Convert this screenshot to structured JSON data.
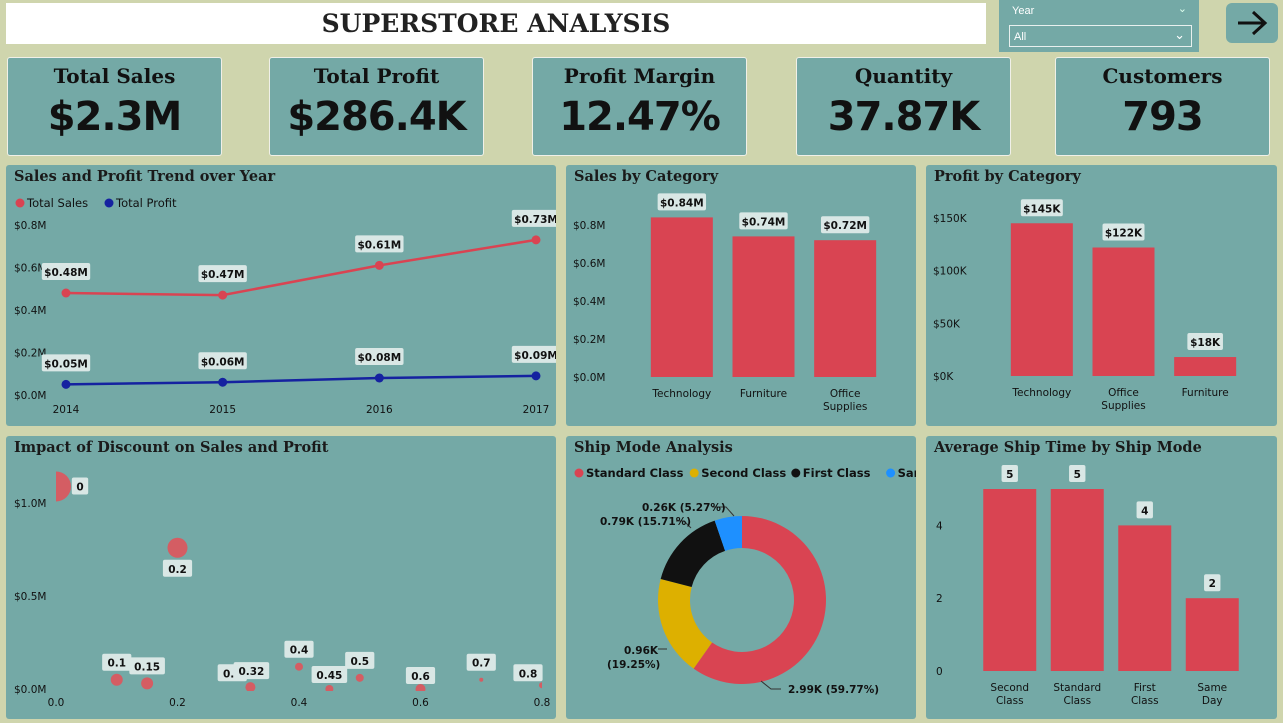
{
  "header": {
    "title": "SUPERSTORE ANALYSIS"
  },
  "slicer": {
    "label": "Year",
    "value": "All"
  },
  "nav": {
    "icon": "arrow-right-icon"
  },
  "kpis": [
    {
      "label": "Total Sales",
      "value": "$2.3M"
    },
    {
      "label": "Total Profit",
      "value": "$286.4K"
    },
    {
      "label": "Profit Margin",
      "value": "12.47%"
    },
    {
      "label": "Quantity",
      "value": "37.87K"
    },
    {
      "label": "Customers",
      "value": "793"
    }
  ],
  "colors": {
    "sales": "#d94452",
    "profit": "#1522a0",
    "panel": "#74a9a6",
    "background": "#cfd5ad"
  },
  "chart_data": [
    {
      "type": "line",
      "title": "Sales and Profit Trend over Year",
      "x": [
        "2014",
        "2015",
        "2016",
        "2017"
      ],
      "series": [
        {
          "name": "Total Sales",
          "values": [
            0.48,
            0.47,
            0.61,
            0.73
          ],
          "labels": [
            "$0.48M",
            "$0.47M",
            "$0.61M",
            "$0.73M"
          ],
          "color": "#d94452"
        },
        {
          "name": "Total Profit",
          "values": [
            0.05,
            0.06,
            0.08,
            0.09
          ],
          "labels": [
            "$0.05M",
            "$0.06M",
            "$0.08M",
            "$0.09M"
          ],
          "color": "#1522a0"
        }
      ],
      "ylim": [
        0,
        0.8
      ],
      "yticks": [
        "$0.0M",
        "$0.2M",
        "$0.4M",
        "$0.6M",
        "$0.8M"
      ],
      "legend": "top-left"
    },
    {
      "type": "bar",
      "title": "Sales by Category",
      "categories": [
        "Technology",
        "Furniture",
        "Office Supplies"
      ],
      "values": [
        0.84,
        0.74,
        0.72
      ],
      "labels": [
        "$0.84M",
        "$0.74M",
        "$0.72M"
      ],
      "ylim": [
        0,
        0.8
      ],
      "yticks": [
        "$0.0M",
        "$0.2M",
        "$0.4M",
        "$0.6M",
        "$0.8M"
      ]
    },
    {
      "type": "bar",
      "title": "Profit by Category",
      "categories": [
        "Technology",
        "Office Supplies",
        "Furniture"
      ],
      "values": [
        145,
        122,
        18
      ],
      "labels": [
        "$145K",
        "$122K",
        "$18K"
      ],
      "ylim": [
        0,
        150
      ],
      "yticks": [
        "$0K",
        "$50K",
        "$100K",
        "$150K"
      ]
    },
    {
      "type": "scatter",
      "title": "Impact of Discount on Sales and Profit",
      "points": [
        {
          "x": 0,
          "y": 1.09,
          "label": "0",
          "size": 15
        },
        {
          "x": 0.1,
          "y": 0.05,
          "label": "0.1",
          "size": 6
        },
        {
          "x": 0.15,
          "y": 0.03,
          "label": "0.15",
          "size": 6
        },
        {
          "x": 0.2,
          "y": 0.76,
          "label": "0.2",
          "size": 10
        },
        {
          "x": 0.3,
          "y": 0.09,
          "label": "0.3",
          "size": 3
        },
        {
          "x": 0.32,
          "y": 0.01,
          "label": "0.32",
          "size": 5
        },
        {
          "x": 0.4,
          "y": 0.12,
          "label": "0.4",
          "size": 4
        },
        {
          "x": 0.45,
          "y": 0.0,
          "label": "0.45",
          "size": 4
        },
        {
          "x": 0.5,
          "y": 0.06,
          "label": "0.5",
          "size": 4
        },
        {
          "x": 0.6,
          "y": 0.0,
          "label": "0.6",
          "size": 5
        },
        {
          "x": 0.7,
          "y": 0.05,
          "label": "0.7",
          "size": 2
        },
        {
          "x": 0.8,
          "y": 0.02,
          "label": "0.8",
          "size": 3
        }
      ],
      "xlim": [
        0,
        0.8
      ],
      "ylim": [
        0,
        1.2
      ],
      "xticks": [
        "0.0",
        "0.2",
        "0.4",
        "0.6",
        "0.8"
      ],
      "yticks": [
        "$0.0M",
        "$0.5M",
        "$1.0M"
      ]
    },
    {
      "type": "pie",
      "title": "Ship Mode Analysis",
      "slices": [
        {
          "name": "Standard Class",
          "value": 59.77,
          "label": "2.99K (59.77%)",
          "color": "#d94452"
        },
        {
          "name": "Second Class",
          "value": 19.25,
          "label": "0.96K (19.25%)",
          "color": "#ddb000"
        },
        {
          "name": "First Class",
          "value": 15.71,
          "label": "0.79K (15.71%)",
          "color": "#111111"
        },
        {
          "name": "Same Day",
          "value": 5.27,
          "label": "0.26K (5.27%)",
          "color": "#1e90ff"
        }
      ],
      "legend": "top"
    },
    {
      "type": "bar",
      "title": "Average Ship Time by Ship Mode",
      "categories": [
        "Second Class",
        "Standard Class",
        "First Class",
        "Same Day"
      ],
      "values": [
        5,
        5,
        4,
        2
      ],
      "labels": [
        "5",
        "5",
        "4",
        "2"
      ],
      "ylim": [
        0,
        5
      ],
      "yticks": [
        "0",
        "2",
        "4"
      ]
    }
  ]
}
